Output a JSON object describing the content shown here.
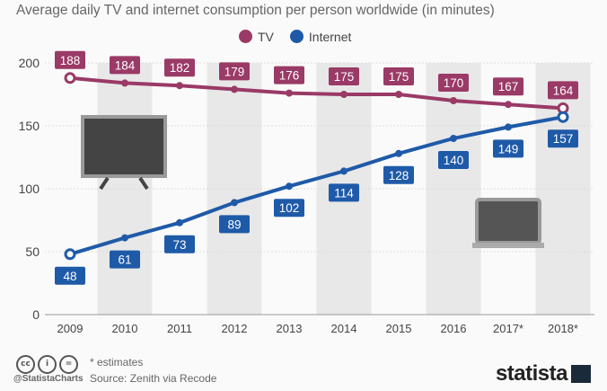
{
  "title": "Average daily TV and internet consumption per person worldwide (in minutes)",
  "chart_data": {
    "type": "line",
    "title": "Average daily TV and internet consumption per person worldwide (in minutes)",
    "categories": [
      "2009",
      "2010",
      "2011",
      "2012",
      "2013",
      "2014",
      "2015",
      "2016",
      "2017*",
      "2018*"
    ],
    "series": [
      {
        "name": "TV",
        "color": "#9a3a66",
        "values": [
          188,
          184,
          182,
          179,
          176,
          175,
          175,
          170,
          167,
          164
        ]
      },
      {
        "name": "Internet",
        "color": "#1f5aa8",
        "values": [
          48,
          61,
          73,
          89,
          102,
          114,
          128,
          140,
          149,
          157
        ]
      }
    ],
    "ylim": [
      0,
      200
    ],
    "yticks": [
      0,
      50,
      100,
      150,
      200
    ],
    "grid": "alternating column bands",
    "legend": "top-center",
    "icons": [
      "tv-icon",
      "laptop-icon"
    ]
  },
  "footer": {
    "note": "* estimates",
    "source": "Source: Zenith via Recode",
    "handle": "@StatistaCharts",
    "brand": "statista",
    "cc": [
      "cc",
      "i",
      "="
    ]
  }
}
